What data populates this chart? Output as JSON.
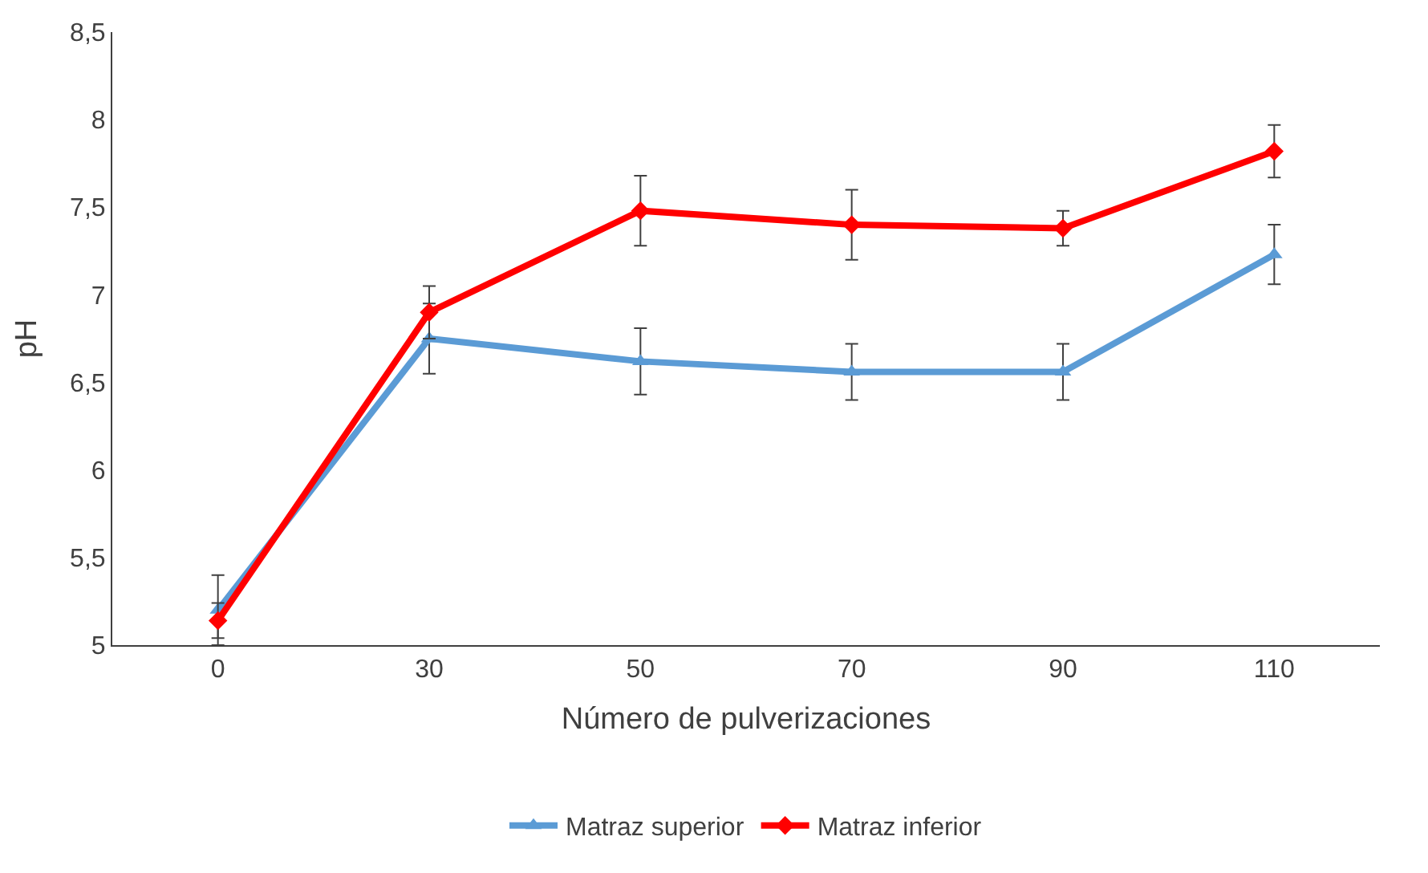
{
  "chart_data": {
    "type": "line",
    "xlabel": "Número de pulverizaciones",
    "ylabel": "pH",
    "categories": [
      "0",
      "30",
      "50",
      "70",
      "90",
      "110"
    ],
    "series": [
      {
        "name": "Matraz superior",
        "color": "#5b9bd5",
        "marker": "triangle",
        "values": [
          5.2,
          6.75,
          6.62,
          6.56,
          6.56,
          7.23
        ],
        "errors": [
          0.2,
          0.2,
          0.19,
          0.16,
          0.16,
          0.17
        ]
      },
      {
        "name": "Matraz inferior",
        "color": "#ff0000",
        "marker": "diamond",
        "values": [
          5.14,
          6.9,
          7.48,
          7.4,
          7.38,
          7.82
        ],
        "errors": [
          0.1,
          0.15,
          0.2,
          0.2,
          0.1,
          0.15
        ]
      }
    ],
    "ylim": [
      5,
      8.5
    ],
    "yticks": [
      5,
      {
        "value": 5.5,
        "label": "5,5"
      },
      6,
      {
        "value": 6.5,
        "label": "6,5"
      },
      7,
      {
        "value": 7.5,
        "label": "7,5"
      },
      8,
      {
        "value": 8.5,
        "label": "8,5"
      }
    ],
    "grid": false,
    "legend": "bottom",
    "line_style": "solid"
  }
}
